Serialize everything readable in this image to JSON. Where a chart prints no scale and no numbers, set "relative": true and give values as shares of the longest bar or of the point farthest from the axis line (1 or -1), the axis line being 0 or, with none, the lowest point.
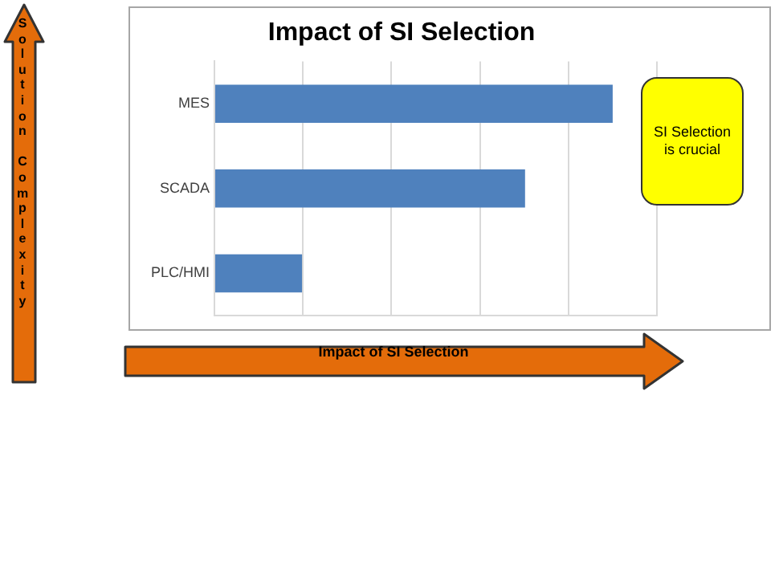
{
  "chart_data": {
    "type": "bar",
    "orientation": "horizontal",
    "relative": true,
    "title": "Impact of SI Selection",
    "xlabel": "Impact of SI Selection",
    "ylabel": "Solution Complexity",
    "categories": [
      "MES",
      "SCADA",
      "PLC/HMI"
    ],
    "values": [
      1,
      0.78,
      0.22
    ],
    "color": "#4f81bd",
    "grid": "x",
    "legend": false,
    "annotations": [
      "SI Selection is crucial"
    ]
  }
}
